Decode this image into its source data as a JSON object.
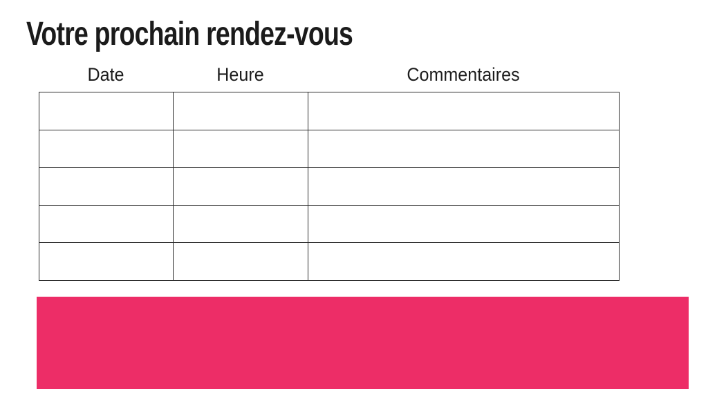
{
  "page": {
    "title": "Votre prochain rendez-vous"
  },
  "table": {
    "headers": [
      "Date",
      "Heure",
      "Commentaires"
    ],
    "rows": [
      [
        "",
        "",
        ""
      ],
      [
        "",
        "",
        ""
      ],
      [
        "",
        "",
        ""
      ],
      [
        "",
        "",
        ""
      ],
      [
        "",
        "",
        ""
      ]
    ]
  },
  "banner": {
    "color": "#ED2D67"
  },
  "colors": {
    "background": "#ffffff",
    "text": "#1b1b1b",
    "table_border": "#2b2b2b",
    "accent_pink": "#ED2D67"
  }
}
